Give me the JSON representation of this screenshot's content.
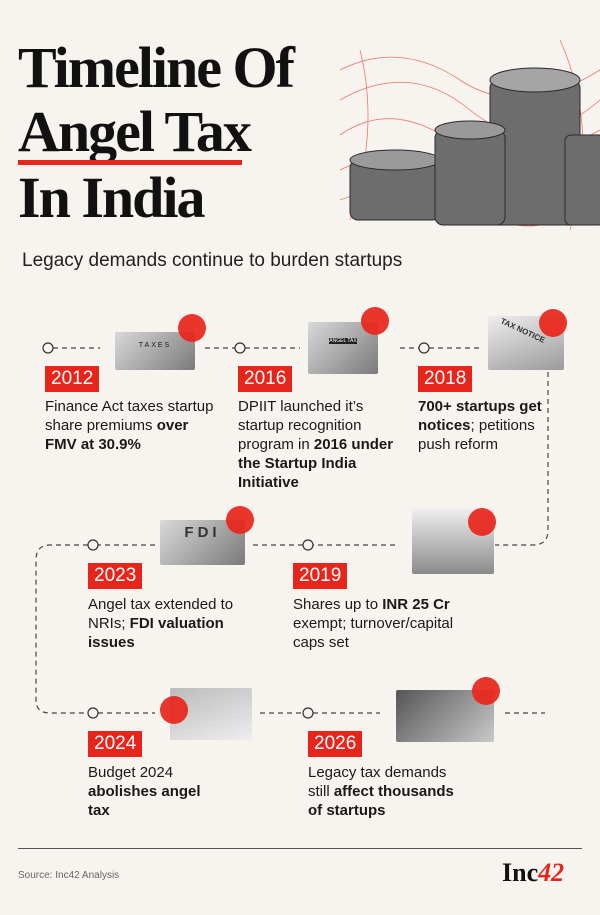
{
  "title": {
    "line1": "Timeline Of",
    "line2": "Angel Tax",
    "line3": "In India"
  },
  "subtitle": "Legacy demands continue to burden startups",
  "colors": {
    "accent": "#e8251b",
    "background": "#f7f3ee"
  },
  "events": [
    {
      "year": "2012",
      "text_parts": [
        "Finance Act taxes startup share premiums ",
        "over FMV at 30.9%"
      ],
      "image": "taxes-blocks-image"
    },
    {
      "year": "2016",
      "text_parts": [
        "DPIIT launched it’s startup recognition program in ",
        "2016 under the Startup India Initiative"
      ],
      "image": "angel-tax-image"
    },
    {
      "year": "2018",
      "text_parts": [
        "700+ startups get notices",
        "; petitions push reform"
      ],
      "image": "tax-notice-image"
    },
    {
      "year": "2019",
      "text_parts": [
        "Shares up to ",
        "INR 25 Cr",
        " exempt; turnover/capital caps set"
      ],
      "image": "percent-chart-image"
    },
    {
      "year": "2023",
      "text_parts": [
        "Angel tax extended to NRIs; ",
        "FDI valuation issues"
      ],
      "image": "fdi-coins-image"
    },
    {
      "year": "2024",
      "text_parts": [
        "Budget 2024 ",
        "abolishes angel tax"
      ],
      "image": "calculator-chart-image"
    },
    {
      "year": "2026",
      "text_parts": [
        "Legacy tax demands still ",
        "affect thousands of startups"
      ],
      "image": "startup-team-image"
    }
  ],
  "image_labels": {
    "taxes": "TAXES",
    "angel": "ANGEL TAX",
    "notice": "TAX NOTICE",
    "fdi": "FDI"
  },
  "footer": {
    "source": "Source: Inc42 Analysis",
    "logo_text": "Inc",
    "logo_num": "42"
  }
}
